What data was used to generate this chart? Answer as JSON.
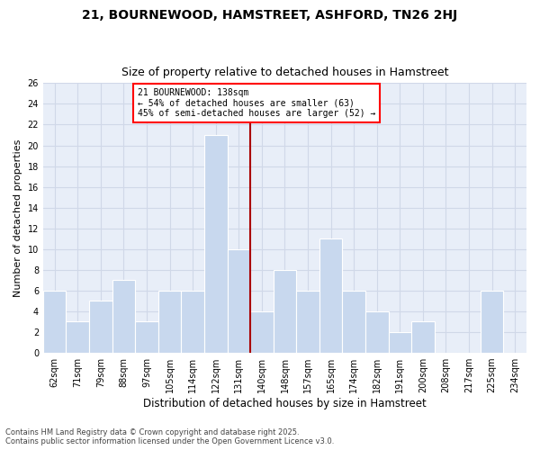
{
  "title": "21, BOURNEWOOD, HAMSTREET, ASHFORD, TN26 2HJ",
  "subtitle": "Size of property relative to detached houses in Hamstreet",
  "xlabel": "Distribution of detached houses by size in Hamstreet",
  "ylabel": "Number of detached properties",
  "categories": [
    "62sqm",
    "71sqm",
    "79sqm",
    "88sqm",
    "97sqm",
    "105sqm",
    "114sqm",
    "122sqm",
    "131sqm",
    "140sqm",
    "148sqm",
    "157sqm",
    "165sqm",
    "174sqm",
    "182sqm",
    "191sqm",
    "200sqm",
    "208sqm",
    "217sqm",
    "225sqm",
    "234sqm"
  ],
  "values": [
    6,
    3,
    5,
    7,
    3,
    6,
    6,
    21,
    10,
    4,
    8,
    6,
    11,
    6,
    4,
    2,
    3,
    0,
    0,
    6,
    0
  ],
  "bar_color": "#c8d8ee",
  "vline_color": "#aa0000",
  "vline_x": 8.5,
  "annotation_text": "21 BOURNEWOOD: 138sqm\n← 54% of detached houses are smaller (63)\n45% of semi-detached houses are larger (52) →",
  "ylim": [
    0,
    26
  ],
  "yticks": [
    0,
    2,
    4,
    6,
    8,
    10,
    12,
    14,
    16,
    18,
    20,
    22,
    24,
    26
  ],
  "grid_color": "#d0d8e8",
  "background_color": "#e8eef8",
  "footer_text": "Contains HM Land Registry data © Crown copyright and database right 2025.\nContains public sector information licensed under the Open Government Licence v3.0.",
  "title_fontsize": 10,
  "subtitle_fontsize": 9,
  "xlabel_fontsize": 8.5,
  "ylabel_fontsize": 8,
  "tick_fontsize": 7,
  "annotation_fontsize": 7,
  "footer_fontsize": 6
}
